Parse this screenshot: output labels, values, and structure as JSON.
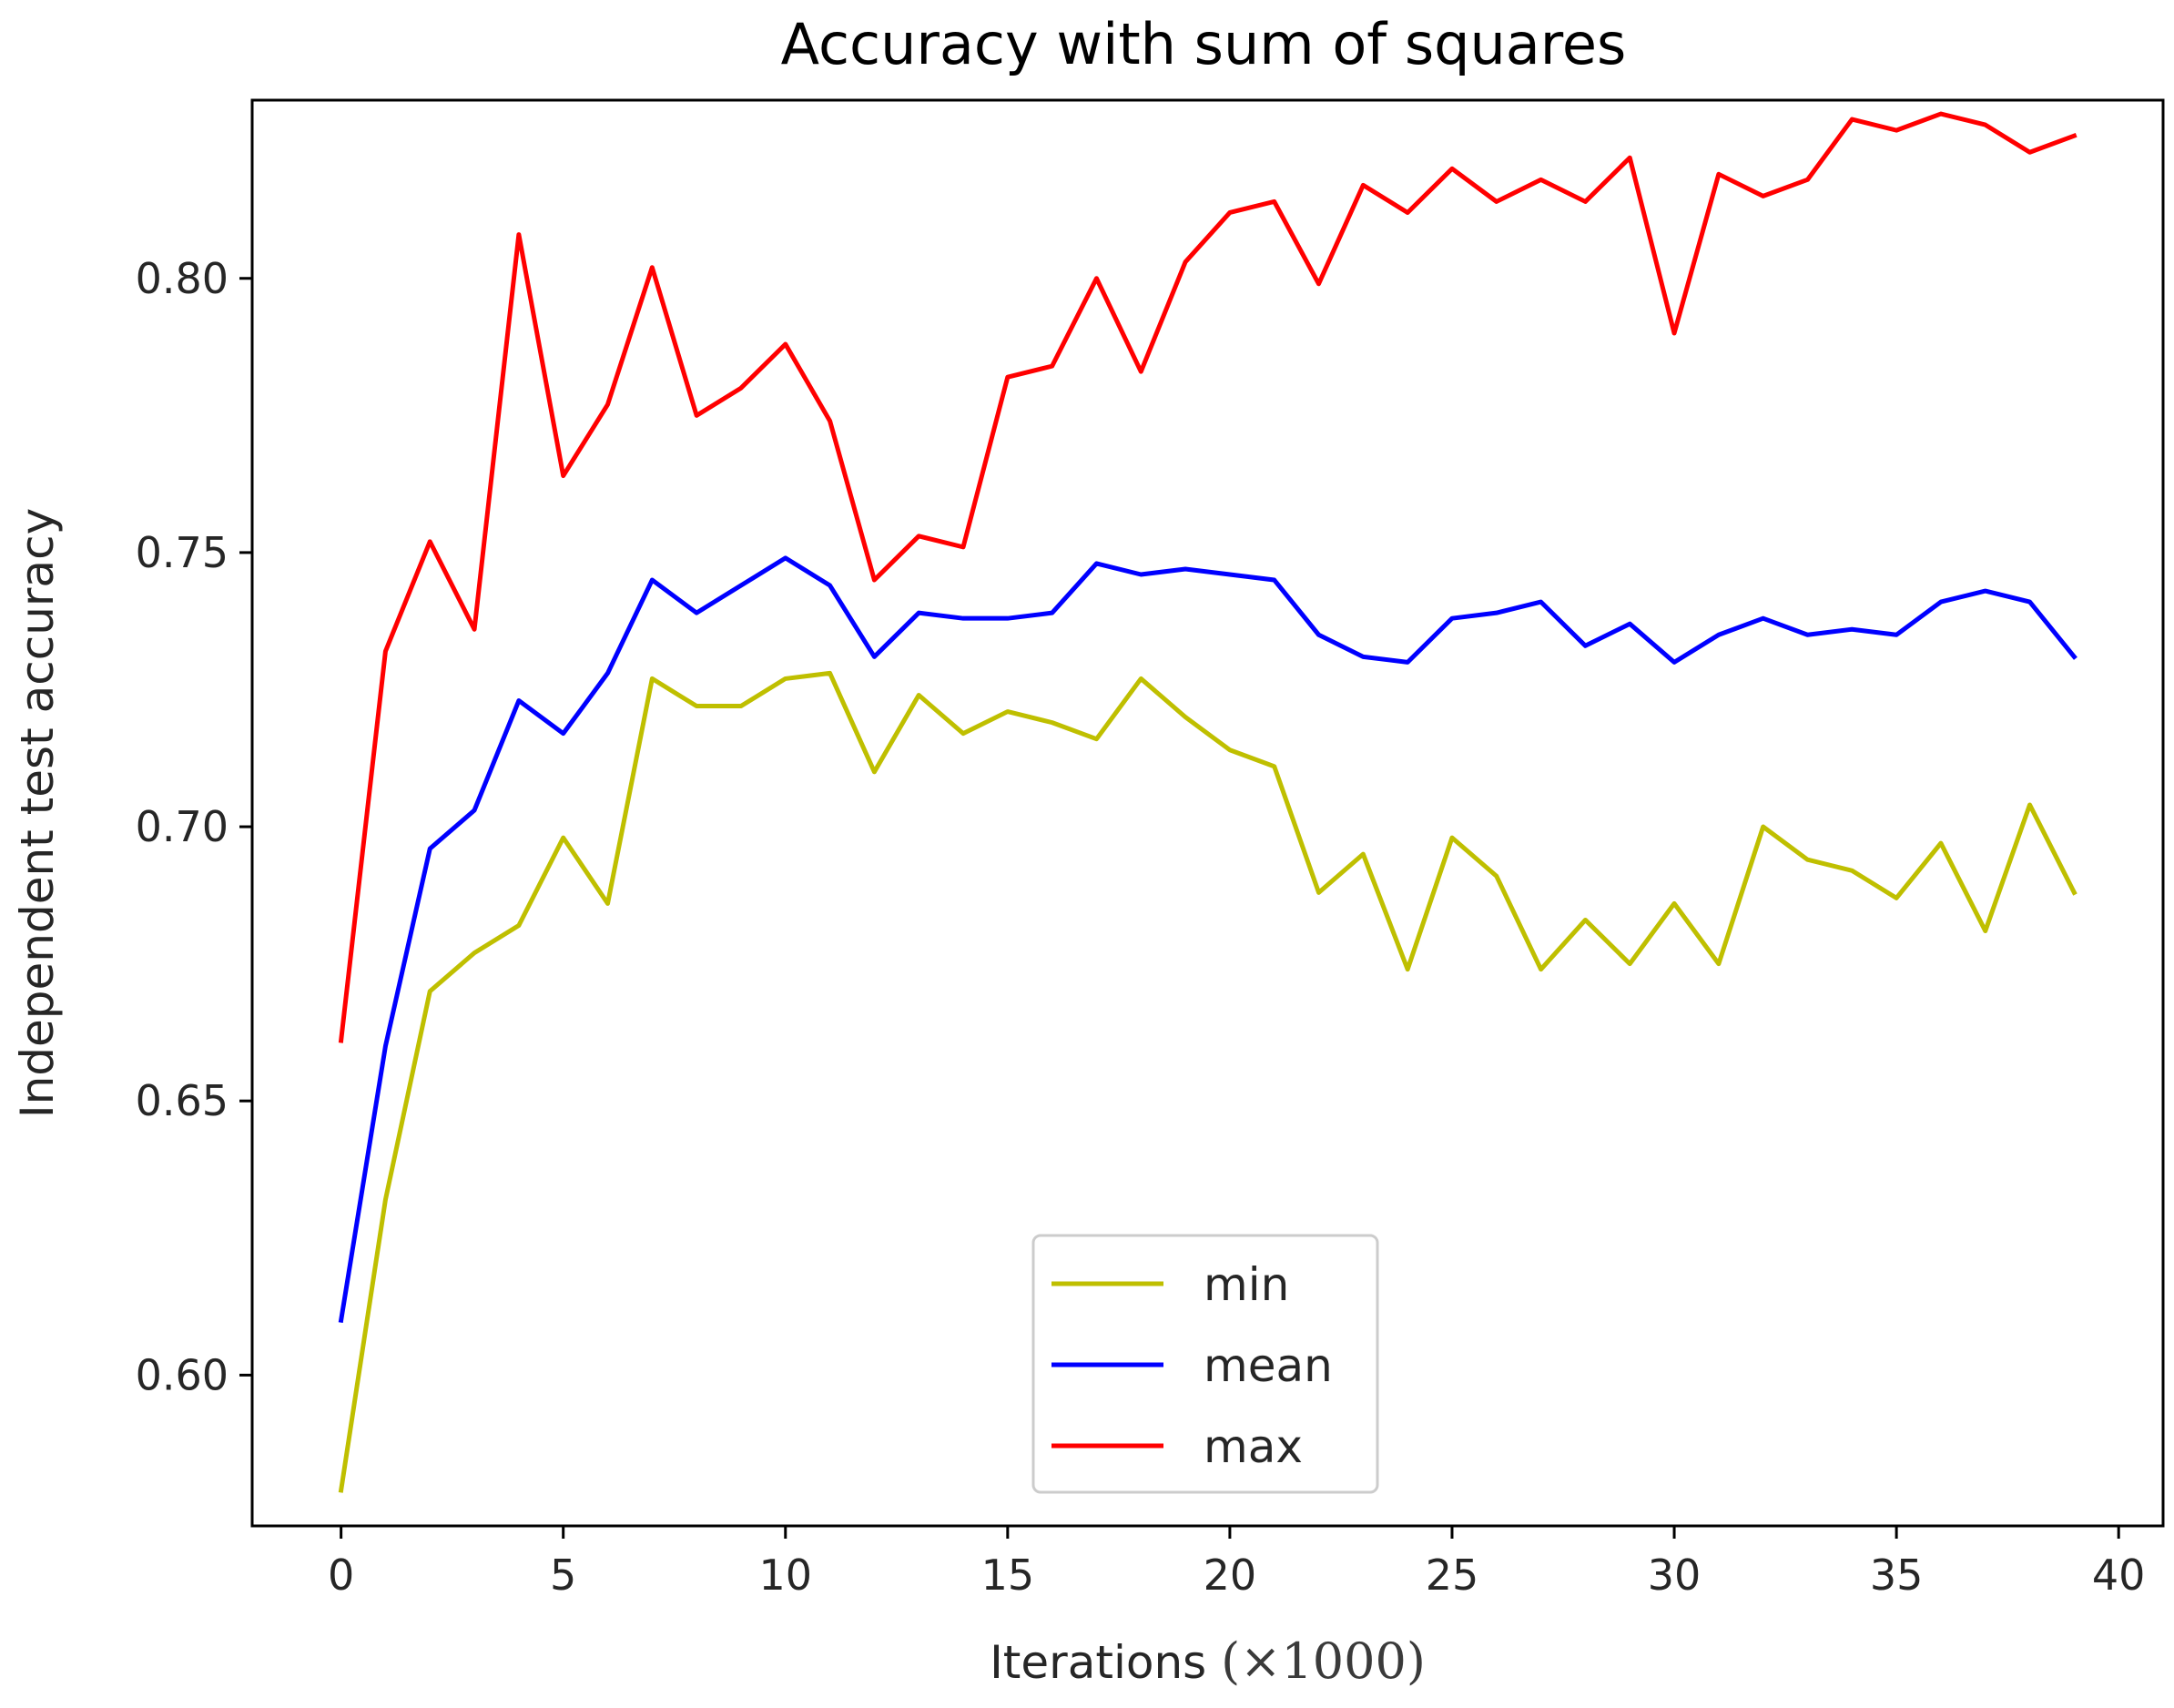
{
  "chart_data": {
    "type": "line",
    "title": "Accuracy with sum of squares",
    "xlabel": "Iterations",
    "xlabel_math": "(×1000)",
    "ylabel": "Independent test accuracy",
    "xlim": [
      -2,
      41
    ],
    "ylim": [
      0.5725,
      0.8325
    ],
    "xticks": [
      0,
      5,
      10,
      15,
      20,
      25,
      30,
      35,
      40
    ],
    "xtick_labels": [
      "0",
      "5",
      "10",
      "15",
      "20",
      "25",
      "30",
      "35",
      "40"
    ],
    "yticks": [
      0.6,
      0.65,
      0.7,
      0.75,
      0.8
    ],
    "ytick_labels": [
      "0.60",
      "0.65",
      "0.70",
      "0.75",
      "0.80"
    ],
    "grid": false,
    "legend_position": "lower center",
    "x": [
      0,
      1,
      2,
      3,
      4,
      5,
      6,
      7,
      8,
      9,
      10,
      11,
      12,
      13,
      14,
      15,
      16,
      17,
      18,
      19,
      20,
      21,
      22,
      23,
      24,
      25,
      26,
      27,
      28,
      29,
      30,
      31,
      32,
      33,
      34,
      35,
      36,
      37,
      38,
      39
    ],
    "series": [
      {
        "name": "min",
        "color": "#bfbf00",
        "values": [
          0.579,
          0.632,
          0.67,
          0.677,
          0.682,
          0.698,
          0.686,
          0.727,
          0.722,
          0.722,
          0.727,
          0.728,
          0.71,
          0.724,
          0.717,
          0.721,
          0.719,
          0.716,
          0.727,
          0.72,
          0.714,
          0.711,
          0.688,
          0.695,
          0.674,
          0.698,
          0.691,
          0.674,
          0.683,
          0.675,
          0.686,
          0.675,
          0.7,
          0.694,
          0.692,
          0.687,
          0.697,
          0.681,
          0.704,
          0.688
        ]
      },
      {
        "name": "mean",
        "color": "#0000ff",
        "values": [
          0.61,
          0.66,
          0.696,
          0.703,
          0.723,
          0.717,
          0.728,
          0.745,
          0.739,
          0.744,
          0.749,
          0.744,
          0.731,
          0.739,
          0.738,
          0.738,
          0.739,
          0.748,
          0.746,
          0.747,
          0.746,
          0.745,
          0.735,
          0.731,
          0.73,
          0.738,
          0.739,
          0.741,
          0.733,
          0.737,
          0.73,
          0.735,
          0.738,
          0.735,
          0.736,
          0.735,
          0.741,
          0.743,
          0.741,
          0.731
        ]
      },
      {
        "name": "max",
        "color": "#ff0000",
        "values": [
          0.661,
          0.732,
          0.752,
          0.736,
          0.808,
          0.764,
          0.777,
          0.802,
          0.775,
          0.78,
          0.788,
          0.774,
          0.745,
          0.753,
          0.751,
          0.782,
          0.784,
          0.8,
          0.783,
          0.803,
          0.812,
          0.814,
          0.799,
          0.817,
          0.812,
          0.82,
          0.814,
          0.818,
          0.814,
          0.822,
          0.79,
          0.819,
          0.815,
          0.818,
          0.829,
          0.827,
          0.83,
          0.828,
          0.823,
          0.826
        ]
      }
    ]
  }
}
